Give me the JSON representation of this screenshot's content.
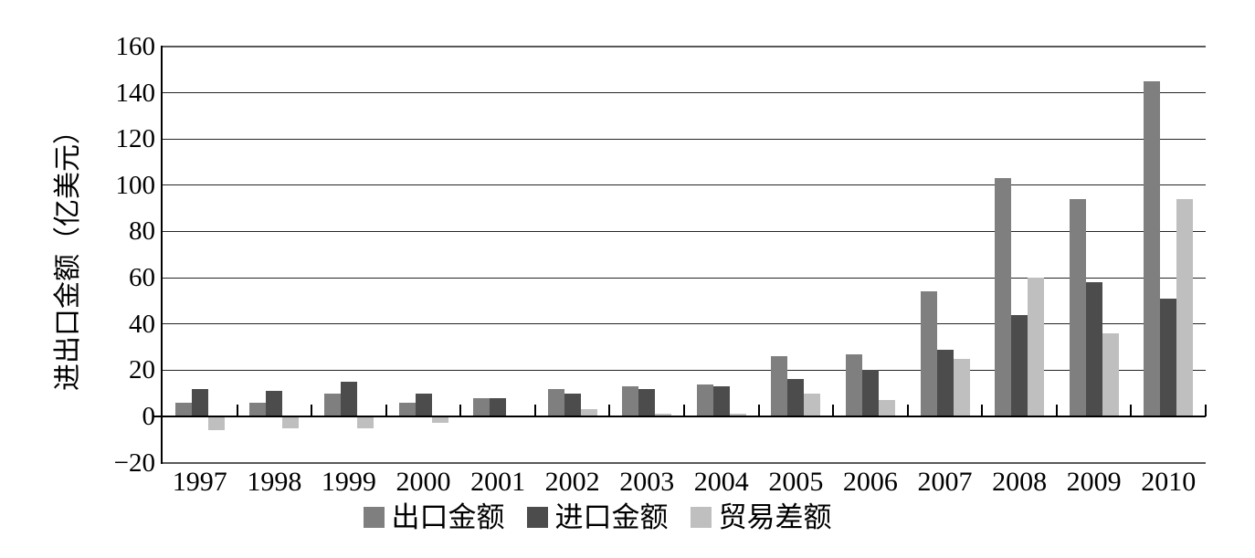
{
  "chart_data": {
    "type": "bar",
    "title": "",
    "categories": [
      "1997",
      "1998",
      "1999",
      "2000",
      "2001",
      "2002",
      "2003",
      "2004",
      "2005",
      "2006",
      "2007",
      "2008",
      "2009",
      "2010"
    ],
    "series": [
      {
        "name": "出口金额",
        "color": "#7f7f7f",
        "values": [
          6,
          6,
          10,
          6,
          8,
          12,
          13,
          14,
          26,
          27,
          54,
          103,
          94,
          145
        ]
      },
      {
        "name": "进口金额",
        "color": "#4c4c4c",
        "values": [
          12,
          11,
          15,
          10,
          8,
          10,
          12,
          13,
          16,
          20,
          29,
          44,
          58,
          51
        ]
      },
      {
        "name": "贸易差额",
        "color": "#bfbfbf",
        "values": [
          -6,
          -5,
          -5,
          -3,
          0,
          3,
          1,
          1,
          10,
          7,
          25,
          60,
          36,
          94
        ]
      }
    ],
    "xlabel": "",
    "ylabel": "进出口金额（亿美元）",
    "ylim": [
      -20,
      160
    ],
    "ytick_step": 20,
    "yticks": [
      160,
      140,
      120,
      100,
      80,
      60,
      40,
      20,
      0,
      -20
    ],
    "ytick_labels": [
      "160",
      "140",
      "120",
      "100",
      "80",
      "60",
      "40",
      "20",
      "0",
      "−20"
    ],
    "grid": true,
    "legend_position": "bottom",
    "axis_color": "#000000",
    "gridline_color": "#262626",
    "border_gridline_color": "#595959"
  }
}
